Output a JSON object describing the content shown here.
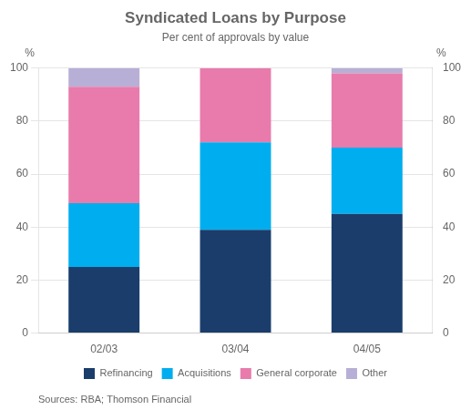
{
  "chart_data": {
    "type": "bar",
    "stacked": true,
    "title": "Syndicated Loans by Purpose",
    "subtitle": "Per cent of approvals by value",
    "ylabel": "%",
    "y2label": "%",
    "source": "Sources: RBA; Thomson Financial",
    "categories": [
      "02/03",
      "03/04",
      "04/05"
    ],
    "series": [
      {
        "name": "Refinancing",
        "color": "#1a3d6b",
        "values": [
          25,
          39,
          45
        ]
      },
      {
        "name": "Acquisitions",
        "color": "#00aeef",
        "values": [
          24,
          33,
          25
        ]
      },
      {
        "name": "General corporate",
        "color": "#e87bac",
        "values": [
          44,
          28,
          28
        ]
      },
      {
        "name": "Other",
        "color": "#b8afd6",
        "values": [
          7,
          0,
          2
        ]
      }
    ],
    "ylim": [
      0,
      100
    ],
    "yticks": [
      0,
      20,
      40,
      60,
      80,
      100
    ],
    "y2lim": [
      0,
      100
    ],
    "y2ticks": [
      0,
      20,
      40,
      60,
      80,
      100
    ],
    "grid": true,
    "legend": "bottom"
  }
}
